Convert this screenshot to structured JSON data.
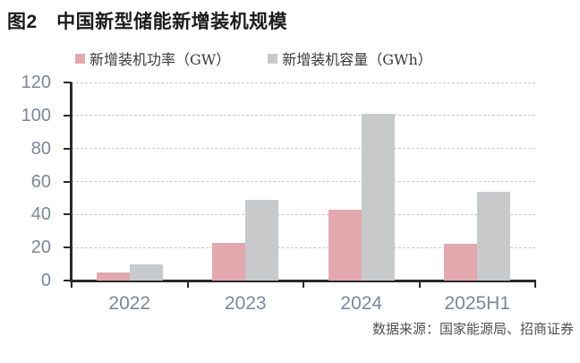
{
  "chart_data": {
    "type": "bar",
    "title": "图2　中国新型储能新增装机规模",
    "categories": [
      "2022",
      "2023",
      "2024",
      "2025H1"
    ],
    "series": [
      {
        "name": "新增装机功率（GW）",
        "color": "#E1A9AE",
        "values": [
          5,
          23,
          43,
          22
        ]
      },
      {
        "name": "新增装机容量（GWh）",
        "color": "#C8C9CB",
        "values": [
          10,
          49,
          101,
          54
        ]
      }
    ],
    "xlabel": "",
    "ylabel": "",
    "ylim": [
      0,
      120
    ],
    "yticks": [
      0,
      20,
      40,
      60,
      80,
      100,
      120
    ],
    "grid": "horizontal-dashed",
    "legend_position": "top-left",
    "source": "数据来源：国家能源局、招商证券"
  },
  "colors": {
    "bar_power": "#E1A9AE",
    "bar_capacity": "#C8C9CB",
    "axis_line": "#2a2a2a",
    "axis_text": "#7d8795",
    "gridline": "#c9c9c9",
    "title_text": "#1c1c1c",
    "legend_text": "#3a3a3a",
    "source_text": "#4f4f4f"
  }
}
